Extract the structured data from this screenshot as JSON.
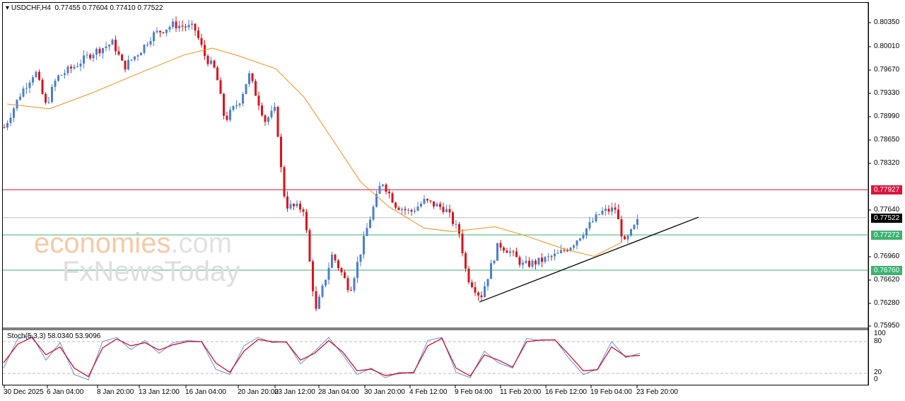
{
  "header": {
    "symbol": "USDCHF,H4",
    "open": "0.77455",
    "high": "0.77604",
    "low": "0.77410",
    "close": "0.77522"
  },
  "watermark": {
    "brand1": "economies",
    "brand1_suffix": ".com",
    "brand2": "FxNewsToday"
  },
  "price_axis": [
    "0.80350",
    "0.80010",
    "0.79670",
    "0.79330",
    "0.78990",
    "0.78650",
    "0.78320",
    "0.77640",
    "0.76960",
    "0.76620",
    "0.76280",
    "0.75950"
  ],
  "levels": [
    {
      "label": "0.77927",
      "price": 0.77927,
      "color": "#dc143c"
    },
    {
      "label": "0.77522",
      "price": 0.77522,
      "color": "#000000",
      "line": "#c0c0c0"
    },
    {
      "label": "0.77272",
      "price": 0.77272,
      "color": "#3cb371"
    },
    {
      "label": "0.76760",
      "price": 0.7676,
      "color": "#3cb371"
    }
  ],
  "stoch": {
    "label": "Stoch(5,3,3) 58.0340 53.9096",
    "axis": [
      "100",
      "80",
      "20",
      "0"
    ]
  },
  "time_axis": [
    "30 Dec 2025",
    "6 Jan 04:00",
    "8 Jan 20:00",
    "13 Jan 12:00",
    "16 Jan 04:00",
    "20 Jan 20:00",
    "23 Jan 12:00",
    "28 Jan 04:00",
    "30 Jan 20:00",
    "4 Feb 12:00",
    "9 Feb 04:00",
    "11 Feb 20:00",
    "16 Feb 12:00",
    "19 Feb 04:00",
    "23 Feb 20:00"
  ],
  "colors": {
    "bull": "#4a7fd4",
    "bear": "#e0101a",
    "ma": "#f0901a",
    "stoch_main": "#6a8fd0",
    "stoch_signal": "#cc0020"
  },
  "chart_data": {
    "type": "candlestick",
    "title": "USDCHF,H4",
    "ylim": [
      0.7595,
      0.8035
    ],
    "close_path": [
      [
        0,
        0.7883
      ],
      [
        24,
        0.7934
      ],
      [
        44,
        0.7965
      ],
      [
        59,
        0.7914
      ],
      [
        74,
        0.7955
      ],
      [
        104,
        0.7975
      ],
      [
        124,
        0.7991
      ],
      [
        154,
        0.8006
      ],
      [
        169,
        0.797
      ],
      [
        194,
        0.7996
      ],
      [
        209,
        0.8017
      ],
      [
        239,
        0.8032
      ],
      [
        269,
        0.8027
      ],
      [
        284,
        0.7986
      ],
      [
        299,
        0.7965
      ],
      [
        312,
        0.7893
      ],
      [
        334,
        0.7924
      ],
      [
        346,
        0.796
      ],
      [
        369,
        0.7893
      ],
      [
        384,
        0.7909
      ],
      [
        392,
        0.7817
      ],
      [
        398,
        0.777
      ],
      [
        424,
        0.7765
      ],
      [
        434,
        0.7668
      ],
      [
        441,
        0.7617
      ],
      [
        464,
        0.7699
      ],
      [
        489,
        0.7647
      ],
      [
        514,
        0.774
      ],
      [
        534,
        0.7806
      ],
      [
        554,
        0.777
      ],
      [
        574,
        0.776
      ],
      [
        594,
        0.7776
      ],
      [
        624,
        0.7765
      ],
      [
        644,
        0.7729
      ],
      [
        654,
        0.7668
      ],
      [
        674,
        0.7637
      ],
      [
        699,
        0.7714
      ],
      [
        714,
        0.7704
      ],
      [
        734,
        0.7683
      ],
      [
        754,
        0.7688
      ],
      [
        784,
        0.7699
      ],
      [
        804,
        0.7714
      ],
      [
        844,
        0.776
      ],
      [
        864,
        0.7765
      ],
      [
        877,
        0.7714
      ],
      [
        899,
        0.7752
      ]
    ],
    "ma_path": [
      [
        4,
        0.7917
      ],
      [
        64,
        0.791
      ],
      [
        124,
        0.7933
      ],
      [
        194,
        0.7963
      ],
      [
        254,
        0.7988
      ],
      [
        294,
        0.7998
      ],
      [
        334,
        0.7986
      ],
      [
        384,
        0.7968
      ],
      [
        424,
        0.7927
      ],
      [
        464,
        0.7866
      ],
      [
        504,
        0.7804
      ],
      [
        544,
        0.7768
      ],
      [
        594,
        0.7737
      ],
      [
        634,
        0.7732
      ],
      [
        694,
        0.7739
      ],
      [
        734,
        0.7727
      ],
      [
        794,
        0.7706
      ],
      [
        834,
        0.7696
      ],
      [
        874,
        0.7717
      ]
    ],
    "trendline": {
      "start_price": 0.76298,
      "end_price": 0.77529
    },
    "stoch_main": [
      30,
      85,
      92,
      45,
      78,
      18,
      8,
      80,
      88,
      65,
      82,
      58,
      78,
      82,
      80,
      28,
      18,
      72,
      88,
      78,
      80,
      38,
      62,
      88,
      55,
      18,
      30,
      12,
      22,
      20,
      82,
      88,
      22,
      12,
      62,
      40,
      30,
      86,
      82,
      84,
      48,
      18,
      28,
      80,
      50,
      58
    ],
    "stoch_signal": [
      40,
      75,
      88,
      55,
      70,
      30,
      14,
      68,
      85,
      72,
      78,
      64,
      74,
      80,
      80,
      40,
      22,
      62,
      84,
      80,
      79,
      45,
      58,
      82,
      60,
      25,
      28,
      16,
      20,
      22,
      72,
      86,
      30,
      15,
      55,
      45,
      32,
      80,
      83,
      83,
      55,
      25,
      27,
      70,
      52,
      54
    ]
  }
}
